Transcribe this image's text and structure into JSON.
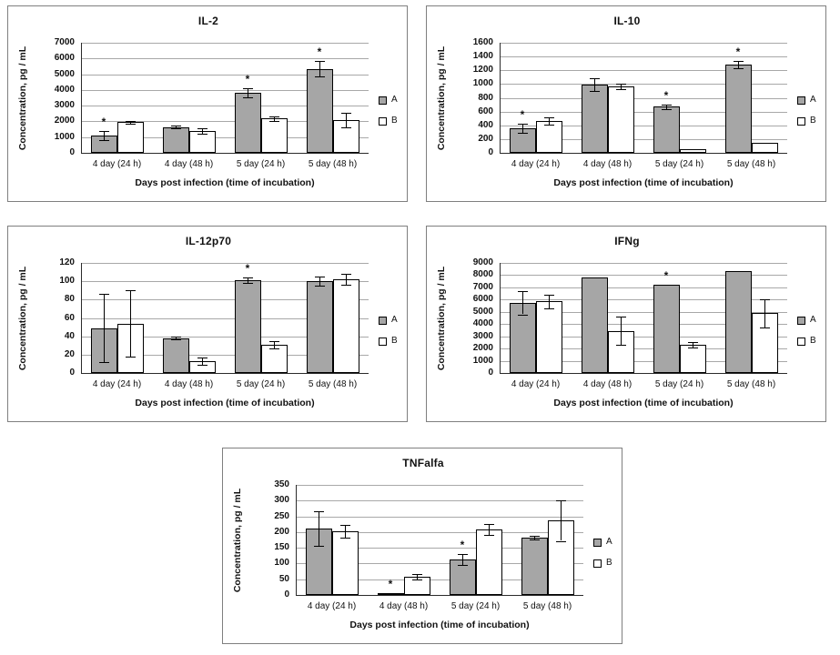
{
  "figure": {
    "background": "#ffffff",
    "bar_fill_a": "#a6a6a6",
    "bar_fill_b": "#ffffff",
    "bar_border": "#000000",
    "gridline_color": "#a8a8a8",
    "panel_border_color": "#7f7f7f",
    "significance_marker": "*"
  },
  "chart_data": [
    {
      "type": "bar",
      "title": "IL-2",
      "xlabel": "Days post infection (time of incubation)",
      "ylabel": "Concentration, pg / mL",
      "categories": [
        "4 day (24 h)",
        "4 day (48 h)",
        "5 day (24 h)",
        "5 day (48 h)"
      ],
      "ylim": [
        0,
        7000
      ],
      "yticks": [
        0,
        1000,
        2000,
        3000,
        4000,
        5000,
        6000,
        7000
      ],
      "grid": true,
      "legend_position": "right",
      "series": [
        {
          "name": "A",
          "color": "#a6a6a6",
          "values": [
            1100,
            1650,
            3820,
            5350
          ],
          "errors": [
            300,
            60,
            300,
            500
          ],
          "asterisks": [
            true,
            false,
            true,
            true
          ]
        },
        {
          "name": "B",
          "color": "#ffffff",
          "values": [
            1950,
            1400,
            2180,
            2070
          ],
          "errors": [
            80,
            180,
            150,
            450
          ],
          "asterisks": [
            false,
            false,
            false,
            false
          ]
        }
      ]
    },
    {
      "type": "bar",
      "title": "IL-10",
      "xlabel": "Days post infection (time of incubation)",
      "ylabel": "Concentration, pg / mL",
      "categories": [
        "4 day (24 h)",
        "4 day (48 h)",
        "5 day (24 h)",
        "5 day (48 h)"
      ],
      "ylim": [
        0,
        1600
      ],
      "yticks": [
        0,
        200,
        400,
        600,
        800,
        1000,
        1200,
        1400,
        1600
      ],
      "grid": true,
      "legend_position": "right",
      "series": [
        {
          "name": "A",
          "color": "#a6a6a6",
          "values": [
            360,
            990,
            670,
            1285
          ],
          "errors": [
            70,
            90,
            30,
            55
          ],
          "asterisks": [
            true,
            false,
            true,
            true
          ]
        },
        {
          "name": "B",
          "color": "#ffffff",
          "values": [
            460,
            960,
            50,
            140
          ],
          "errors": [
            50,
            40,
            0,
            0
          ],
          "asterisks": [
            false,
            false,
            false,
            false
          ]
        }
      ]
    },
    {
      "type": "bar",
      "title": "IL-12p70",
      "xlabel": "Days post infection (time of incubation)",
      "ylabel": "Concentration, pg / mL",
      "categories": [
        "4 day (24 h)",
        "4 day (48 h)",
        "5 day (24 h)",
        "5 day (48 h)"
      ],
      "ylim": [
        0,
        120
      ],
      "yticks": [
        0,
        20,
        40,
        60,
        80,
        100,
        120
      ],
      "grid": true,
      "legend_position": "right",
      "series": [
        {
          "name": "A",
          "color": "#a6a6a6",
          "values": [
            49,
            38,
            101,
            100
          ],
          "errors": [
            37,
            1.5,
            3,
            5
          ],
          "asterisks": [
            false,
            false,
            true,
            false
          ]
        },
        {
          "name": "B",
          "color": "#ffffff",
          "values": [
            54,
            13,
            31,
            102
          ],
          "errors": [
            36,
            4,
            4,
            6
          ],
          "asterisks": [
            false,
            false,
            false,
            false
          ]
        }
      ]
    },
    {
      "type": "bar",
      "title": "IFNg",
      "xlabel": "Days post infection (time of incubation)",
      "ylabel": "Concentration, pg / mL",
      "categories": [
        "4 day (24 h)",
        "4 day (48 h)",
        "5 day (24 h)",
        "5 day (48 h)"
      ],
      "ylim": [
        0,
        9000
      ],
      "yticks": [
        0,
        1000,
        2000,
        3000,
        4000,
        5000,
        6000,
        7000,
        8000,
        9000
      ],
      "grid": true,
      "legend_position": "right",
      "series": [
        {
          "name": "A",
          "color": "#a6a6a6",
          "values": [
            5750,
            7850,
            7200,
            8350
          ],
          "errors": [
            950,
            0,
            0,
            0
          ],
          "asterisks": [
            false,
            false,
            true,
            false
          ]
        },
        {
          "name": "B",
          "color": "#ffffff",
          "values": [
            5850,
            3450,
            2300,
            4900
          ],
          "errors": [
            550,
            1150,
            200,
            1150
          ],
          "asterisks": [
            false,
            false,
            false,
            false
          ]
        }
      ]
    },
    {
      "type": "bar",
      "title": "TNFalfa",
      "xlabel": "Days post infection (time of incubation)",
      "ylabel": "Concentration, pg / mL",
      "categories": [
        "4 day (24 h)",
        "4 day (48 h)",
        "5 day (24 h)",
        "5 day (48 h)"
      ],
      "ylim": [
        0,
        350
      ],
      "yticks": [
        0,
        50,
        100,
        150,
        200,
        250,
        300,
        350
      ],
      "grid": true,
      "legend_position": "right",
      "series": [
        {
          "name": "A",
          "color": "#a6a6a6",
          "values": [
            210,
            5,
            112,
            183
          ],
          "errors": [
            55,
            0,
            17,
            5
          ],
          "asterisks": [
            false,
            true,
            true,
            false
          ]
        },
        {
          "name": "B",
          "color": "#ffffff",
          "values": [
            202,
            58,
            208,
            237
          ],
          "errors": [
            20,
            10,
            17,
            65
          ],
          "asterisks": [
            false,
            false,
            false,
            false
          ]
        }
      ]
    }
  ]
}
